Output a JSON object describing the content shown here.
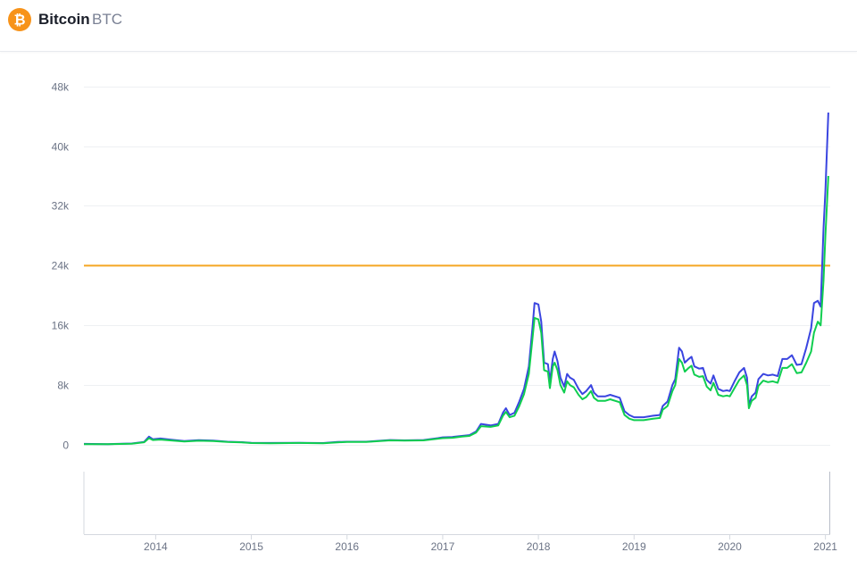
{
  "coin": {
    "name": "Bitcoin",
    "symbol": "BTC",
    "logo_icon": "bitcoin-icon",
    "logo_color": "#f7931a"
  },
  "chart_data": {
    "type": "line",
    "title": "",
    "xlabel": "",
    "ylabel": "",
    "ylim": [
      0,
      50000
    ],
    "y_ticks": [
      {
        "value": 0,
        "label": "0"
      },
      {
        "value": 8000,
        "label": "8k"
      },
      {
        "value": 16000,
        "label": "16k"
      },
      {
        "value": 24000,
        "label": "24k"
      },
      {
        "value": 32000,
        "label": "32k"
      },
      {
        "value": 40000,
        "label": "40k"
      },
      {
        "value": 48000,
        "label": "48k"
      }
    ],
    "xlim": [
      2013.25,
      2021.05
    ],
    "x_ticks": [
      {
        "value": 2014,
        "label": "2014"
      },
      {
        "value": 2015,
        "label": "2015"
      },
      {
        "value": 2016,
        "label": "2016"
      },
      {
        "value": 2017,
        "label": "2017"
      },
      {
        "value": 2018,
        "label": "2018"
      },
      {
        "value": 2019,
        "label": "2019"
      },
      {
        "value": 2020,
        "label": "2020"
      },
      {
        "value": 2021,
        "label": "2021"
      }
    ],
    "grid": true,
    "horizontal_reference": {
      "value": 24000,
      "color": "#f5a623"
    },
    "series": [
      {
        "color": "#3a45e0",
        "points": [
          [
            2013.25,
            130
          ],
          [
            2013.5,
            90
          ],
          [
            2013.75,
            180
          ],
          [
            2013.88,
            400
          ],
          [
            2013.93,
            1100
          ],
          [
            2013.97,
            750
          ],
          [
            2014.05,
            850
          ],
          [
            2014.15,
            700
          ],
          [
            2014.3,
            500
          ],
          [
            2014.45,
            620
          ],
          [
            2014.6,
            580
          ],
          [
            2014.75,
            420
          ],
          [
            2014.9,
            360
          ],
          [
            2015.0,
            280
          ],
          [
            2015.2,
            250
          ],
          [
            2015.5,
            280
          ],
          [
            2015.75,
            240
          ],
          [
            2015.9,
            380
          ],
          [
            2016.0,
            420
          ],
          [
            2016.2,
            420
          ],
          [
            2016.45,
            650
          ],
          [
            2016.6,
            600
          ],
          [
            2016.8,
            650
          ],
          [
            2016.95,
            900
          ],
          [
            2017.0,
            1000
          ],
          [
            2017.1,
            1050
          ],
          [
            2017.2,
            1200
          ],
          [
            2017.28,
            1300
          ],
          [
            2017.35,
            1800
          ],
          [
            2017.4,
            2800
          ],
          [
            2017.5,
            2600
          ],
          [
            2017.58,
            2800
          ],
          [
            2017.63,
            4300
          ],
          [
            2017.66,
            4900
          ],
          [
            2017.7,
            4000
          ],
          [
            2017.75,
            4300
          ],
          [
            2017.8,
            5800
          ],
          [
            2017.85,
            7500
          ],
          [
            2017.9,
            10500
          ],
          [
            2017.94,
            16000
          ],
          [
            2017.96,
            19000
          ],
          [
            2018.0,
            18800
          ],
          [
            2018.03,
            16500
          ],
          [
            2018.06,
            11000
          ],
          [
            2018.1,
            10800
          ],
          [
            2018.12,
            8500
          ],
          [
            2018.15,
            11500
          ],
          [
            2018.17,
            12500
          ],
          [
            2018.2,
            11200
          ],
          [
            2018.23,
            9000
          ],
          [
            2018.27,
            7800
          ],
          [
            2018.3,
            9500
          ],
          [
            2018.33,
            9000
          ],
          [
            2018.37,
            8700
          ],
          [
            2018.42,
            7500
          ],
          [
            2018.46,
            6800
          ],
          [
            2018.5,
            7200
          ],
          [
            2018.55,
            8000
          ],
          [
            2018.58,
            7000
          ],
          [
            2018.62,
            6500
          ],
          [
            2018.7,
            6500
          ],
          [
            2018.75,
            6700
          ],
          [
            2018.85,
            6300
          ],
          [
            2018.9,
            4500
          ],
          [
            2018.95,
            4000
          ],
          [
            2019.0,
            3700
          ],
          [
            2019.1,
            3700
          ],
          [
            2019.2,
            3900
          ],
          [
            2019.27,
            4000
          ],
          [
            2019.3,
            5200
          ],
          [
            2019.35,
            5800
          ],
          [
            2019.4,
            8000
          ],
          [
            2019.43,
            8800
          ],
          [
            2019.47,
            13000
          ],
          [
            2019.5,
            12500
          ],
          [
            2019.53,
            11000
          ],
          [
            2019.57,
            11500
          ],
          [
            2019.6,
            11800
          ],
          [
            2019.63,
            10500
          ],
          [
            2019.68,
            10200
          ],
          [
            2019.72,
            10300
          ],
          [
            2019.76,
            8700
          ],
          [
            2019.8,
            8200
          ],
          [
            2019.83,
            9300
          ],
          [
            2019.88,
            7500
          ],
          [
            2019.93,
            7200
          ],
          [
            2019.97,
            7300
          ],
          [
            2020.0,
            7200
          ],
          [
            2020.05,
            8500
          ],
          [
            2020.1,
            9700
          ],
          [
            2020.15,
            10300
          ],
          [
            2020.18,
            9000
          ],
          [
            2020.2,
            5300
          ],
          [
            2020.23,
            6500
          ],
          [
            2020.27,
            7000
          ],
          [
            2020.3,
            8800
          ],
          [
            2020.35,
            9500
          ],
          [
            2020.4,
            9300
          ],
          [
            2020.45,
            9400
          ],
          [
            2020.5,
            9200
          ],
          [
            2020.55,
            11500
          ],
          [
            2020.6,
            11500
          ],
          [
            2020.65,
            12000
          ],
          [
            2020.7,
            10700
          ],
          [
            2020.75,
            10800
          ],
          [
            2020.8,
            13000
          ],
          [
            2020.85,
            15600
          ],
          [
            2020.88,
            19000
          ],
          [
            2020.92,
            19300
          ],
          [
            2020.95,
            18500
          ],
          [
            2020.98,
            29000
          ],
          [
            2021.0,
            34000
          ],
          [
            2021.03,
            44500
          ]
        ]
      },
      {
        "color": "#0fce4f",
        "points": [
          [
            2013.25,
            100
          ],
          [
            2013.5,
            80
          ],
          [
            2013.75,
            150
          ],
          [
            2013.88,
            350
          ],
          [
            2013.93,
            900
          ],
          [
            2013.97,
            650
          ],
          [
            2014.05,
            700
          ],
          [
            2014.15,
            600
          ],
          [
            2014.3,
            450
          ],
          [
            2014.45,
            550
          ],
          [
            2014.6,
            500
          ],
          [
            2014.75,
            380
          ],
          [
            2014.9,
            320
          ],
          [
            2015.0,
            240
          ],
          [
            2015.2,
            220
          ],
          [
            2015.5,
            250
          ],
          [
            2015.75,
            220
          ],
          [
            2015.9,
            340
          ],
          [
            2016.0,
            380
          ],
          [
            2016.2,
            380
          ],
          [
            2016.45,
            600
          ],
          [
            2016.6,
            560
          ],
          [
            2016.8,
            600
          ],
          [
            2016.95,
            820
          ],
          [
            2017.0,
            900
          ],
          [
            2017.1,
            950
          ],
          [
            2017.2,
            1100
          ],
          [
            2017.28,
            1200
          ],
          [
            2017.35,
            1650
          ],
          [
            2017.4,
            2500
          ],
          [
            2017.5,
            2400
          ],
          [
            2017.58,
            2600
          ],
          [
            2017.63,
            3900
          ],
          [
            2017.66,
            4400
          ],
          [
            2017.7,
            3700
          ],
          [
            2017.75,
            3900
          ],
          [
            2017.8,
            5200
          ],
          [
            2017.85,
            6800
          ],
          [
            2017.9,
            9500
          ],
          [
            2017.94,
            14500
          ],
          [
            2017.96,
            17000
          ],
          [
            2018.0,
            16800
          ],
          [
            2018.03,
            15000
          ],
          [
            2018.06,
            10000
          ],
          [
            2018.1,
            9800
          ],
          [
            2018.12,
            7600
          ],
          [
            2018.15,
            10500
          ],
          [
            2018.17,
            11000
          ],
          [
            2018.2,
            10000
          ],
          [
            2018.23,
            8000
          ],
          [
            2018.27,
            7000
          ],
          [
            2018.3,
            8500
          ],
          [
            2018.33,
            8000
          ],
          [
            2018.37,
            7700
          ],
          [
            2018.42,
            6700
          ],
          [
            2018.46,
            6100
          ],
          [
            2018.5,
            6400
          ],
          [
            2018.55,
            7200
          ],
          [
            2018.58,
            6300
          ],
          [
            2018.62,
            5900
          ],
          [
            2018.7,
            5900
          ],
          [
            2018.75,
            6100
          ],
          [
            2018.85,
            5700
          ],
          [
            2018.9,
            4000
          ],
          [
            2018.95,
            3500
          ],
          [
            2019.0,
            3300
          ],
          [
            2019.1,
            3300
          ],
          [
            2019.2,
            3500
          ],
          [
            2019.27,
            3600
          ],
          [
            2019.3,
            4700
          ],
          [
            2019.35,
            5200
          ],
          [
            2019.4,
            7200
          ],
          [
            2019.43,
            8000
          ],
          [
            2019.47,
            11500
          ],
          [
            2019.5,
            11000
          ],
          [
            2019.53,
            9800
          ],
          [
            2019.57,
            10300
          ],
          [
            2019.6,
            10600
          ],
          [
            2019.63,
            9400
          ],
          [
            2019.68,
            9100
          ],
          [
            2019.72,
            9200
          ],
          [
            2019.76,
            7800
          ],
          [
            2019.8,
            7300
          ],
          [
            2019.83,
            8300
          ],
          [
            2019.88,
            6700
          ],
          [
            2019.93,
            6500
          ],
          [
            2019.97,
            6600
          ],
          [
            2020.0,
            6500
          ],
          [
            2020.05,
            7600
          ],
          [
            2020.1,
            8700
          ],
          [
            2020.15,
            9300
          ],
          [
            2020.18,
            8000
          ],
          [
            2020.2,
            4900
          ],
          [
            2020.23,
            5900
          ],
          [
            2020.27,
            6300
          ],
          [
            2020.3,
            7900
          ],
          [
            2020.35,
            8600
          ],
          [
            2020.4,
            8400
          ],
          [
            2020.45,
            8500
          ],
          [
            2020.5,
            8300
          ],
          [
            2020.55,
            10300
          ],
          [
            2020.6,
            10300
          ],
          [
            2020.65,
            10800
          ],
          [
            2020.7,
            9600
          ],
          [
            2020.75,
            9700
          ],
          [
            2020.8,
            11000
          ],
          [
            2020.85,
            12500
          ],
          [
            2020.88,
            15000
          ],
          [
            2020.92,
            16500
          ],
          [
            2020.95,
            16000
          ],
          [
            2020.98,
            22000
          ],
          [
            2021.0,
            28000
          ],
          [
            2021.03,
            36000
          ]
        ]
      }
    ]
  }
}
